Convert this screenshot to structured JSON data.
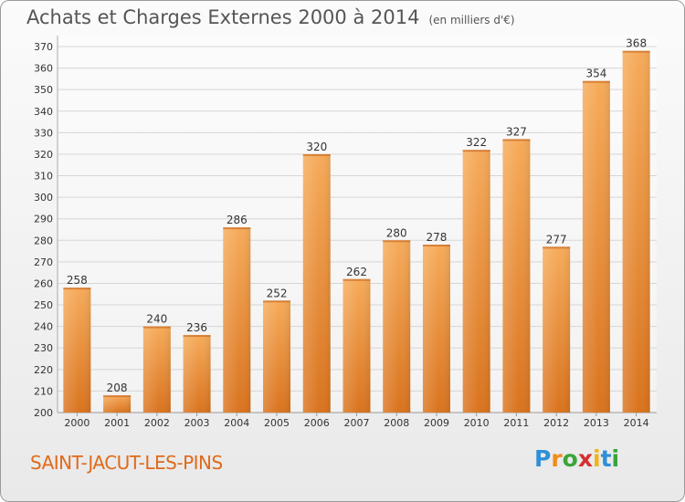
{
  "title": "Achats et Charges Externes 2000 à 2014",
  "subtitle": "(en milliers d'€)",
  "location": "SAINT-JACUT-LES-PINS",
  "logo": {
    "text": "Proxiti",
    "letters": [
      {
        "ch": "P",
        "color": "#2f8fd8"
      },
      {
        "ch": "r",
        "color": "#f08c1a"
      },
      {
        "ch": "o",
        "color": "#3aa53a"
      },
      {
        "ch": "x",
        "color": "#d42f2f"
      },
      {
        "ch": "i",
        "color": "#f0b41a"
      },
      {
        "ch": "t",
        "color": "#2f8fd8"
      },
      {
        "ch": "i",
        "color": "#3aa53a"
      }
    ]
  },
  "colors": {
    "bar_light": "#f6ab5a",
    "bar_dark": "#d9731e",
    "grid": "#d6d6d6",
    "axis_text": "#333333"
  },
  "chart_data": {
    "type": "bar",
    "categories": [
      "2000",
      "2001",
      "2002",
      "2003",
      "2004",
      "2005",
      "2006",
      "2007",
      "2008",
      "2009",
      "2010",
      "2011",
      "2012",
      "2013",
      "2014"
    ],
    "values": [
      258,
      208,
      240,
      236,
      286,
      252,
      320,
      262,
      280,
      278,
      322,
      327,
      277,
      354,
      368
    ],
    "ylim": [
      200,
      370
    ],
    "yticks": [
      200,
      210,
      220,
      230,
      240,
      250,
      260,
      270,
      280,
      290,
      300,
      310,
      320,
      330,
      340,
      350,
      360,
      370
    ],
    "grid": true,
    "xlabel": "",
    "ylabel": ""
  }
}
